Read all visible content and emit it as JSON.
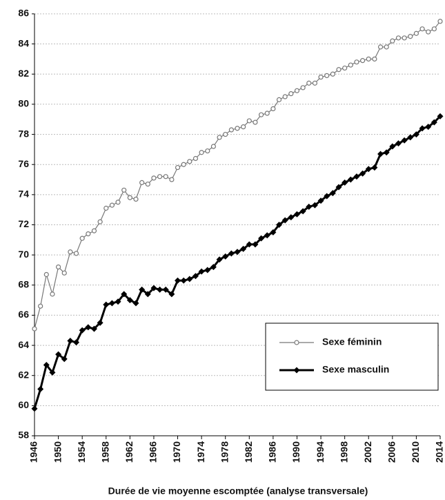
{
  "chart_data": {
    "type": "line",
    "xlabel": "Durée de vie moyenne escomptée (analyse transversale)",
    "x": [
      1946,
      1947,
      1948,
      1949,
      1950,
      1951,
      1952,
      1953,
      1954,
      1955,
      1956,
      1957,
      1958,
      1959,
      1960,
      1961,
      1962,
      1963,
      1964,
      1965,
      1966,
      1967,
      1968,
      1969,
      1970,
      1971,
      1972,
      1973,
      1974,
      1975,
      1976,
      1977,
      1978,
      1979,
      1980,
      1981,
      1982,
      1983,
      1984,
      1985,
      1986,
      1987,
      1988,
      1989,
      1990,
      1991,
      1992,
      1993,
      1994,
      1995,
      1996,
      1997,
      1998,
      1999,
      2000,
      2001,
      2002,
      2003,
      2004,
      2005,
      2006,
      2007,
      2008,
      2009,
      2010,
      2011,
      2012,
      2013,
      2014
    ],
    "series": [
      {
        "name": "Sexe féminin",
        "color": "#777777",
        "values": [
          65.1,
          66.6,
          68.7,
          67.4,
          69.2,
          68.8,
          70.2,
          70.1,
          71.1,
          71.4,
          71.6,
          72.2,
          73.1,
          73.3,
          73.5,
          74.3,
          73.8,
          73.7,
          74.8,
          74.7,
          75.1,
          75.2,
          75.2,
          75.0,
          75.8,
          76.0,
          76.2,
          76.4,
          76.8,
          76.9,
          77.2,
          77.8,
          78.0,
          78.3,
          78.4,
          78.5,
          78.9,
          78.8,
          79.3,
          79.4,
          79.7,
          80.3,
          80.5,
          80.7,
          80.9,
          81.1,
          81.4,
          81.4,
          81.8,
          81.9,
          82.0,
          82.3,
          82.4,
          82.6,
          82.8,
          82.9,
          83.0,
          83.0,
          83.8,
          83.8,
          84.2,
          84.4,
          84.4,
          84.5,
          84.7,
          85.0,
          84.8,
          85.0,
          85.5
        ]
      },
      {
        "name": "Sexe masculin",
        "color": "#000000",
        "values": [
          59.8,
          61.1,
          62.7,
          62.2,
          63.4,
          63.1,
          64.3,
          64.2,
          65.0,
          65.2,
          65.1,
          65.5,
          66.7,
          66.8,
          66.9,
          67.4,
          67.0,
          66.8,
          67.7,
          67.4,
          67.8,
          67.7,
          67.7,
          67.4,
          68.3,
          68.3,
          68.4,
          68.6,
          68.9,
          69.0,
          69.2,
          69.7,
          69.9,
          70.1,
          70.2,
          70.4,
          70.7,
          70.7,
          71.1,
          71.3,
          71.5,
          72.0,
          72.3,
          72.5,
          72.7,
          72.9,
          73.2,
          73.3,
          73.6,
          73.9,
          74.1,
          74.5,
          74.8,
          75.0,
          75.2,
          75.4,
          75.7,
          75.8,
          76.7,
          76.8,
          77.2,
          77.4,
          77.6,
          77.8,
          78.0,
          78.4,
          78.5,
          78.8,
          79.2
        ]
      }
    ],
    "xlim": [
      1946,
      2014
    ],
    "xticks": [
      1946,
      1950,
      1954,
      1958,
      1962,
      1966,
      1970,
      1974,
      1978,
      1982,
      1986,
      1990,
      1994,
      1998,
      2002,
      2006,
      2010,
      2014
    ],
    "ylim": [
      58,
      86
    ],
    "yticks": [
      58,
      60,
      62,
      64,
      66,
      68,
      70,
      72,
      74,
      76,
      78,
      80,
      82,
      84,
      86
    ],
    "grid": true,
    "legend": "lower right"
  }
}
